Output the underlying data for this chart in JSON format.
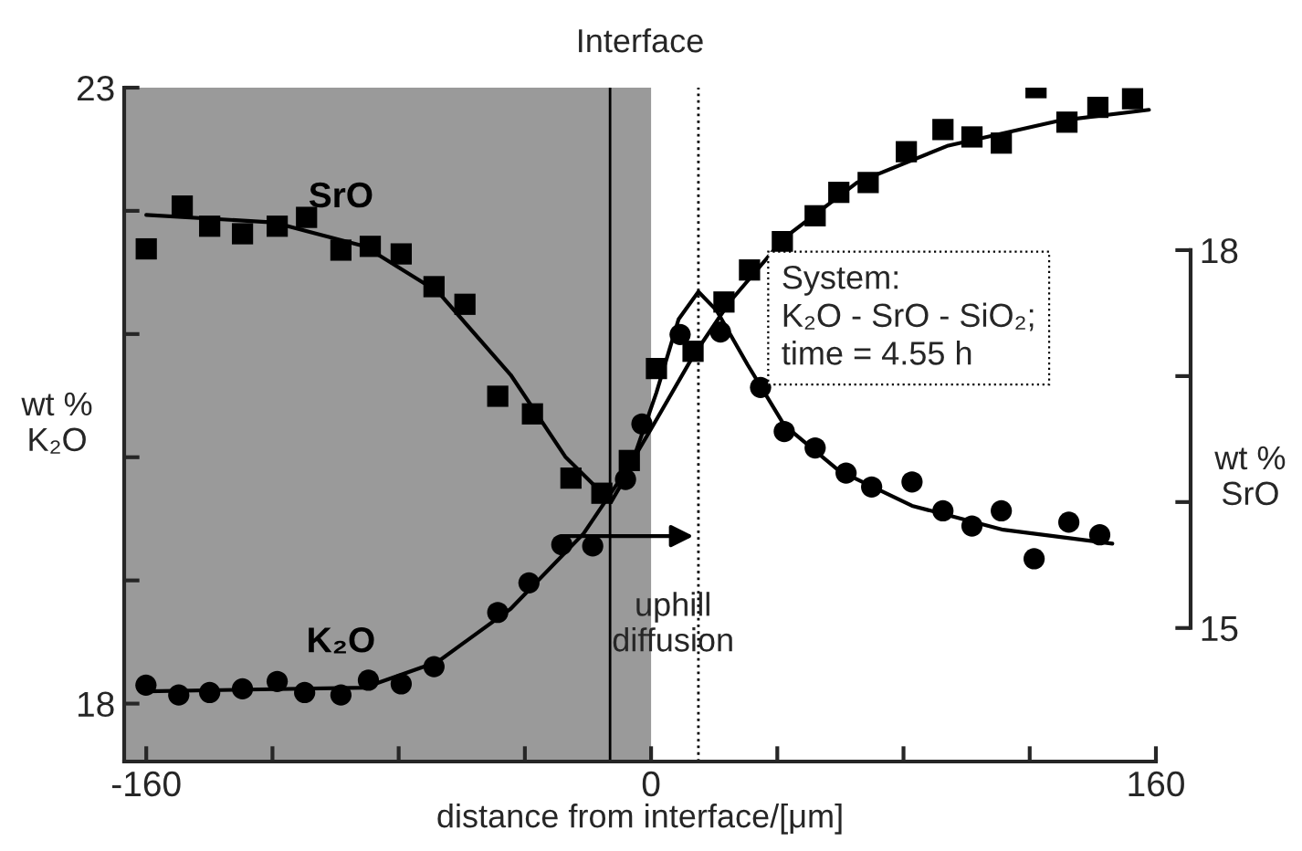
{
  "chart_data": {
    "type": "scatter",
    "title": "Interface",
    "xlabel": "distance from interface/[μm]",
    "ylabel": "wt %\nK₂O",
    "y2label": "wt %\nSrO",
    "xlim": [
      -167,
      160
    ],
    "xticks": [
      -160,
      {
        "value": -120,
        "label": null
      },
      {
        "value": -80,
        "label": null
      },
      {
        "value": -40,
        "label": null
      },
      0,
      {
        "value": 40,
        "label": null
      },
      {
        "value": 80,
        "label": null
      },
      {
        "value": 120,
        "label": null
      },
      160
    ],
    "ylim": [
      17.53,
      23
    ],
    "yticks": [
      18,
      {
        "value": 19,
        "label": null
      },
      {
        "value": 20,
        "label": null
      },
      {
        "value": 21,
        "label": null
      },
      {
        "value": 22,
        "label": null
      },
      23
    ],
    "y2lim": [
      13.94,
      19.29
    ],
    "y2ticks": [
      15,
      {
        "value": 16,
        "label": null
      },
      {
        "value": 17,
        "label": null
      },
      18
    ],
    "grid": false,
    "bands": [
      {
        "axis": "x",
        "from": -167,
        "to": 0,
        "color": "#9a9a9a"
      }
    ],
    "ref_lines": [
      {
        "axis": "x",
        "value": -13,
        "line_style": "solid",
        "color": "#000000"
      },
      {
        "axis": "x",
        "value": 15,
        "line_style": "dotted",
        "color": "#000000"
      }
    ],
    "annotations": [
      {
        "text": "uphill\ndiffusion",
        "x": 15,
        "y": 19.36
      },
      "System:\nK₂O - SrO - SiO₂;\ntime = 4.55 h"
    ],
    "series": [
      {
        "name": "SrO",
        "marker": "square",
        "axis": "y2",
        "color": "#000000",
        "x": [
          -160,
          -148.6,
          -139.9,
          -129.5,
          -118.5,
          -109.2,
          -98.3,
          -89.0,
          -79.2,
          -68.8,
          -59.0,
          -48.6,
          -37.6,
          -25.4,
          -15.6,
          -6.9
        ],
        "values": [
          18.01,
          18.35,
          18.19,
          18.13,
          18.19,
          18.26,
          18.0,
          18.03,
          17.97,
          17.71,
          17.57,
          16.84,
          16.7,
          16.19,
          16.07,
          16.33
        ]
      },
      {
        "marker": "circle",
        "axis": "y2",
        "color": "#000000",
        "x": [
          9.2,
          22.0,
          34.7,
          42.2,
          52.0,
          61.8,
          69.9,
          82.7,
          92.5,
          101.7,
          111.0,
          121.4,
          132.4,
          142.2
        ],
        "values": [
          17.33,
          17.35,
          16.91,
          16.56,
          16.43,
          16.23,
          16.12,
          16.16,
          15.93,
          15.81,
          15.93,
          15.55,
          15.84,
          15.74
        ]
      },
      {
        "name": "K₂O",
        "marker": "circle",
        "color": "#000000",
        "x": [
          -160.1,
          -149.7,
          -139.9,
          -129.5,
          -118.5,
          -109.8,
          -98.3,
          -89.6,
          -79.2,
          -68.8,
          -48.6,
          -38.7,
          -28.3,
          -18.5,
          -8.1,
          -2.9
        ],
        "values": [
          18.15,
          18.07,
          18.09,
          18.12,
          18.18,
          18.09,
          18.07,
          18.19,
          18.16,
          18.3,
          18.74,
          18.98,
          19.29,
          19.28,
          19.82,
          20.27
        ]
      },
      {
        "marker": "square",
        "color": "#000000",
        "x": [
          1.7,
          13.3,
          23.1,
          31.2,
          41.6,
          52.0,
          59.5,
          68.8,
          80.9,
          92.5,
          101.7,
          111.0,
          122.0,
          131.8,
          141.6,
          152.6
        ],
        "values": [
          20.72,
          20.86,
          21.26,
          21.52,
          21.75,
          21.96,
          22.15,
          22.23,
          22.48,
          22.66,
          22.6,
          22.55,
          23.0,
          22.72,
          22.84,
          22.91
        ]
      },
      {
        "type": "line",
        "marker": "none",
        "color": "#000000",
        "x": [
          -160,
          -90.8,
          -67.6,
          -44.5,
          -21.4,
          -6.9,
          0,
          13.3,
          24.9,
          42.2,
          65.3,
          94.2,
          128.9,
          157.8
        ],
        "values": [
          18.1,
          18.13,
          18.34,
          18.77,
          19.38,
          19.93,
          20.23,
          20.82,
          21.26,
          21.78,
          22.23,
          22.53,
          22.73,
          22.82
        ]
      },
      {
        "type": "line",
        "marker": "none",
        "axis": "y2",
        "color": "#000000",
        "x": [
          -160,
          -119.7,
          -90.8,
          -67.6,
          -44.5,
          -27.2,
          -12.7,
          -6.9,
          1.7,
          8.7,
          15.0,
          20.8,
          30.6,
          42.2,
          59.5,
          82.7,
          111.6,
          146.2
        ],
        "values": [
          18.28,
          18.22,
          18.03,
          17.67,
          17.01,
          16.36,
          16.0,
          16.25,
          16.87,
          17.45,
          17.67,
          17.52,
          17.09,
          16.61,
          16.25,
          15.97,
          15.78,
          15.67
        ]
      }
    ]
  }
}
